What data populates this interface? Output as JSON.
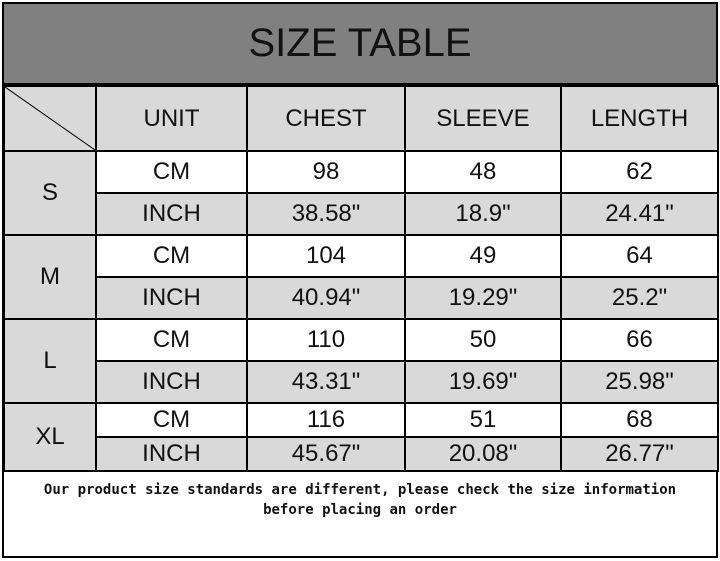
{
  "title": "SIZE TABLE",
  "headers": [
    "UNIT",
    "CHEST",
    "SLEEVE",
    "LENGTH"
  ],
  "sizes": [
    {
      "size": "S",
      "rows": [
        {
          "unit": "CM",
          "chest": "98",
          "sleeve": "48",
          "length": "62"
        },
        {
          "unit": "INCH",
          "chest": "38.58\"",
          "sleeve": "18.9\"",
          "length": "24.41\""
        }
      ]
    },
    {
      "size": "M",
      "rows": [
        {
          "unit": "CM",
          "chest": "104",
          "sleeve": "49",
          "length": "64"
        },
        {
          "unit": "INCH",
          "chest": "40.94\"",
          "sleeve": "19.29\"",
          "length": "25.2\""
        }
      ]
    },
    {
      "size": "L",
      "rows": [
        {
          "unit": "CM",
          "chest": "110",
          "sleeve": "50",
          "length": "66"
        },
        {
          "unit": "INCH",
          "chest": "43.31\"",
          "sleeve": "19.69\"",
          "length": "25.98\""
        }
      ]
    },
    {
      "size": "XL",
      "rows": [
        {
          "unit": "CM",
          "chest": "116",
          "sleeve": "51",
          "length": "68"
        },
        {
          "unit": "INCH",
          "chest": "45.67\"",
          "sleeve": "20.08\"",
          "length": "26.77\""
        }
      ]
    }
  ],
  "note_line1": "Our product size standards are different, please check the size information",
  "note_line2": "before placing an order",
  "colors": {
    "title_bg": "#808080",
    "cell_gray": "#d9d9d9",
    "border": "#000000"
  }
}
